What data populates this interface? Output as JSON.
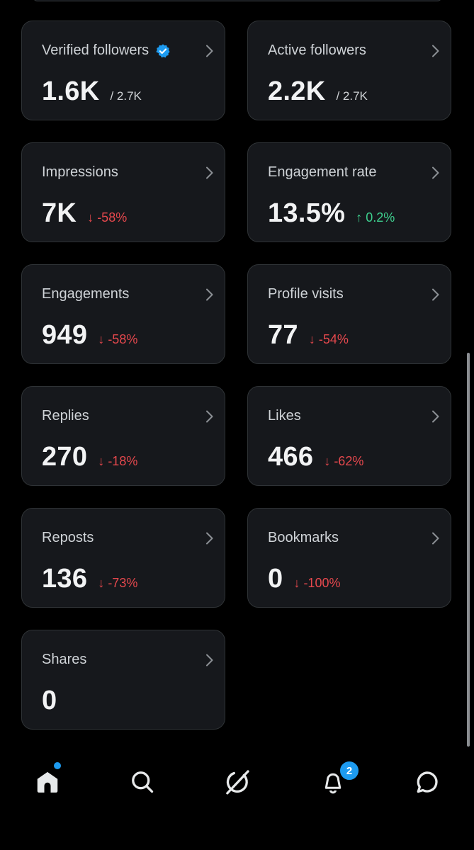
{
  "cards": [
    {
      "label": "Verified followers",
      "value": "1.6K",
      "total": "/ 2.7K",
      "verified": true
    },
    {
      "label": "Active followers",
      "value": "2.2K",
      "total": "/ 2.7K"
    },
    {
      "label": "Impressions",
      "value": "7K",
      "change": {
        "direction": "down",
        "arrow": "↓",
        "text": "-58%"
      }
    },
    {
      "label": "Engagement rate",
      "value": "13.5%",
      "change": {
        "direction": "up",
        "arrow": "↑",
        "text": "0.2%"
      }
    },
    {
      "label": "Engagements",
      "value": "949",
      "change": {
        "direction": "down",
        "arrow": "↓",
        "text": "-58%"
      }
    },
    {
      "label": "Profile visits",
      "value": "77",
      "change": {
        "direction": "down",
        "arrow": "↓",
        "text": "-54%"
      }
    },
    {
      "label": "Replies",
      "value": "270",
      "change": {
        "direction": "down",
        "arrow": "↓",
        "text": "-18%"
      }
    },
    {
      "label": "Likes",
      "value": "466",
      "change": {
        "direction": "down",
        "arrow": "↓",
        "text": "-62%"
      }
    },
    {
      "label": "Reposts",
      "value": "136",
      "change": {
        "direction": "down",
        "arrow": "↓",
        "text": "-73%"
      }
    },
    {
      "label": "Bookmarks",
      "value": "0",
      "change": {
        "direction": "down",
        "arrow": "↓",
        "text": "-100%"
      }
    },
    {
      "label": "Shares",
      "value": "0"
    }
  ],
  "nav": {
    "items": [
      "home-icon",
      "search-icon",
      "grok-icon",
      "notifications-icon",
      "messages-icon"
    ],
    "notifications_badge": "2"
  },
  "colors": {
    "background": "#000000",
    "card_background": "#16181c",
    "card_border": "#2f3336",
    "negative": "#e5484d",
    "positive": "#3ecf8e",
    "accent": "#1d9bf0"
  }
}
